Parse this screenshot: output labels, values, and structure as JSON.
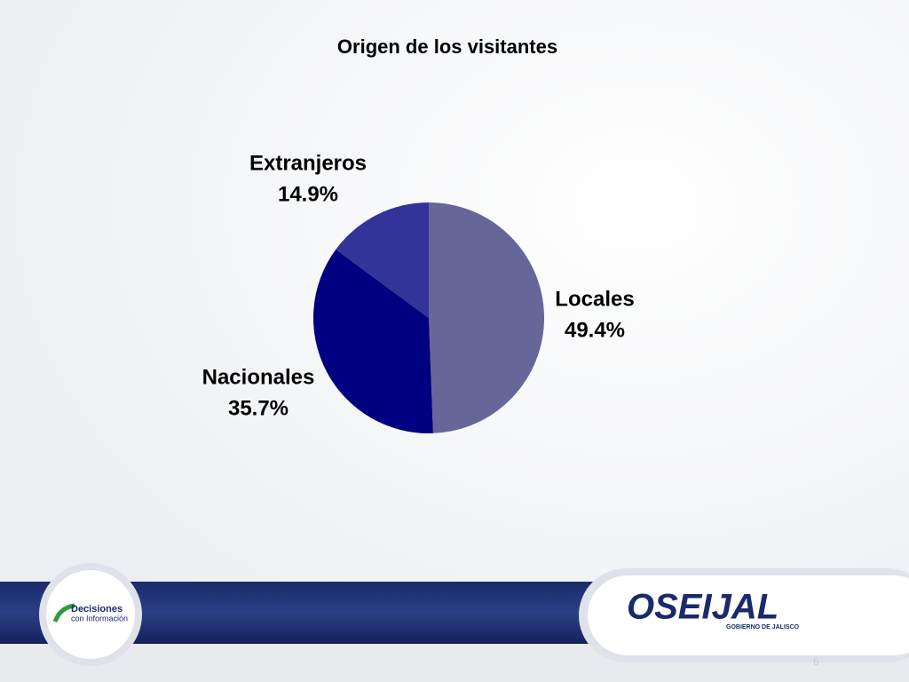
{
  "chart_data": {
    "type": "pie",
    "title": "Origen de los visitantes",
    "categories": [
      "Locales",
      "Nacionales",
      "Extranjeros"
    ],
    "values": [
      49.4,
      35.7,
      14.9
    ],
    "value_labels": [
      "49.4%",
      "35.7%",
      "14.9%"
    ],
    "colors": [
      "#666699",
      "#000080",
      "#333399"
    ]
  },
  "footer": {
    "left_logo": [
      "Decisiones",
      "con Información"
    ],
    "right_logo": "OSEIJAL",
    "right_logo_sub": "GOBIERNO DE JALISCO",
    "page_number": "6"
  }
}
